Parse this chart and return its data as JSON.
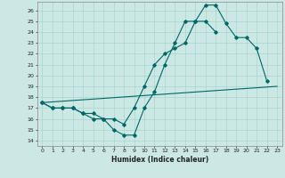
{
  "title": "",
  "xlabel": "Humidex (Indice chaleur)",
  "ylabel": "",
  "bg_color": "#cce8e4",
  "line_color": "#006666",
  "grid_color": "#aad4ce",
  "xlim": [
    -0.5,
    23.5
  ],
  "ylim": [
    13.5,
    26.8
  ],
  "yticks": [
    14,
    15,
    16,
    17,
    18,
    19,
    20,
    21,
    22,
    23,
    24,
    25,
    26
  ],
  "xticks": [
    0,
    1,
    2,
    3,
    4,
    5,
    6,
    7,
    8,
    9,
    10,
    11,
    12,
    13,
    14,
    15,
    16,
    17,
    18,
    19,
    20,
    21,
    22,
    23
  ],
  "series": [
    {
      "x": [
        0,
        1,
        2,
        3,
        4,
        5,
        6,
        7,
        8,
        9,
        10,
        11,
        12,
        13,
        14,
        15,
        16,
        17,
        18,
        19,
        20,
        21,
        22
      ],
      "y": [
        17.5,
        17.0,
        17.0,
        17.0,
        16.5,
        16.0,
        16.0,
        15.0,
        14.5,
        14.5,
        17.0,
        18.5,
        21.0,
        23.0,
        25.0,
        25.0,
        26.5,
        26.5,
        24.8,
        23.5,
        23.5,
        22.5,
        19.5
      ]
    },
    {
      "x": [
        0,
        1,
        2,
        3,
        4,
        5,
        6,
        7,
        8,
        9,
        10,
        11,
        12,
        13,
        14,
        15,
        16,
        17
      ],
      "y": [
        17.5,
        17.0,
        17.0,
        17.0,
        16.5,
        16.5,
        16.0,
        16.0,
        15.5,
        17.0,
        19.0,
        21.0,
        22.0,
        22.5,
        23.0,
        25.0,
        25.0,
        24.0
      ]
    },
    {
      "x": [
        0,
        23
      ],
      "y": [
        17.5,
        19.0
      ]
    }
  ]
}
